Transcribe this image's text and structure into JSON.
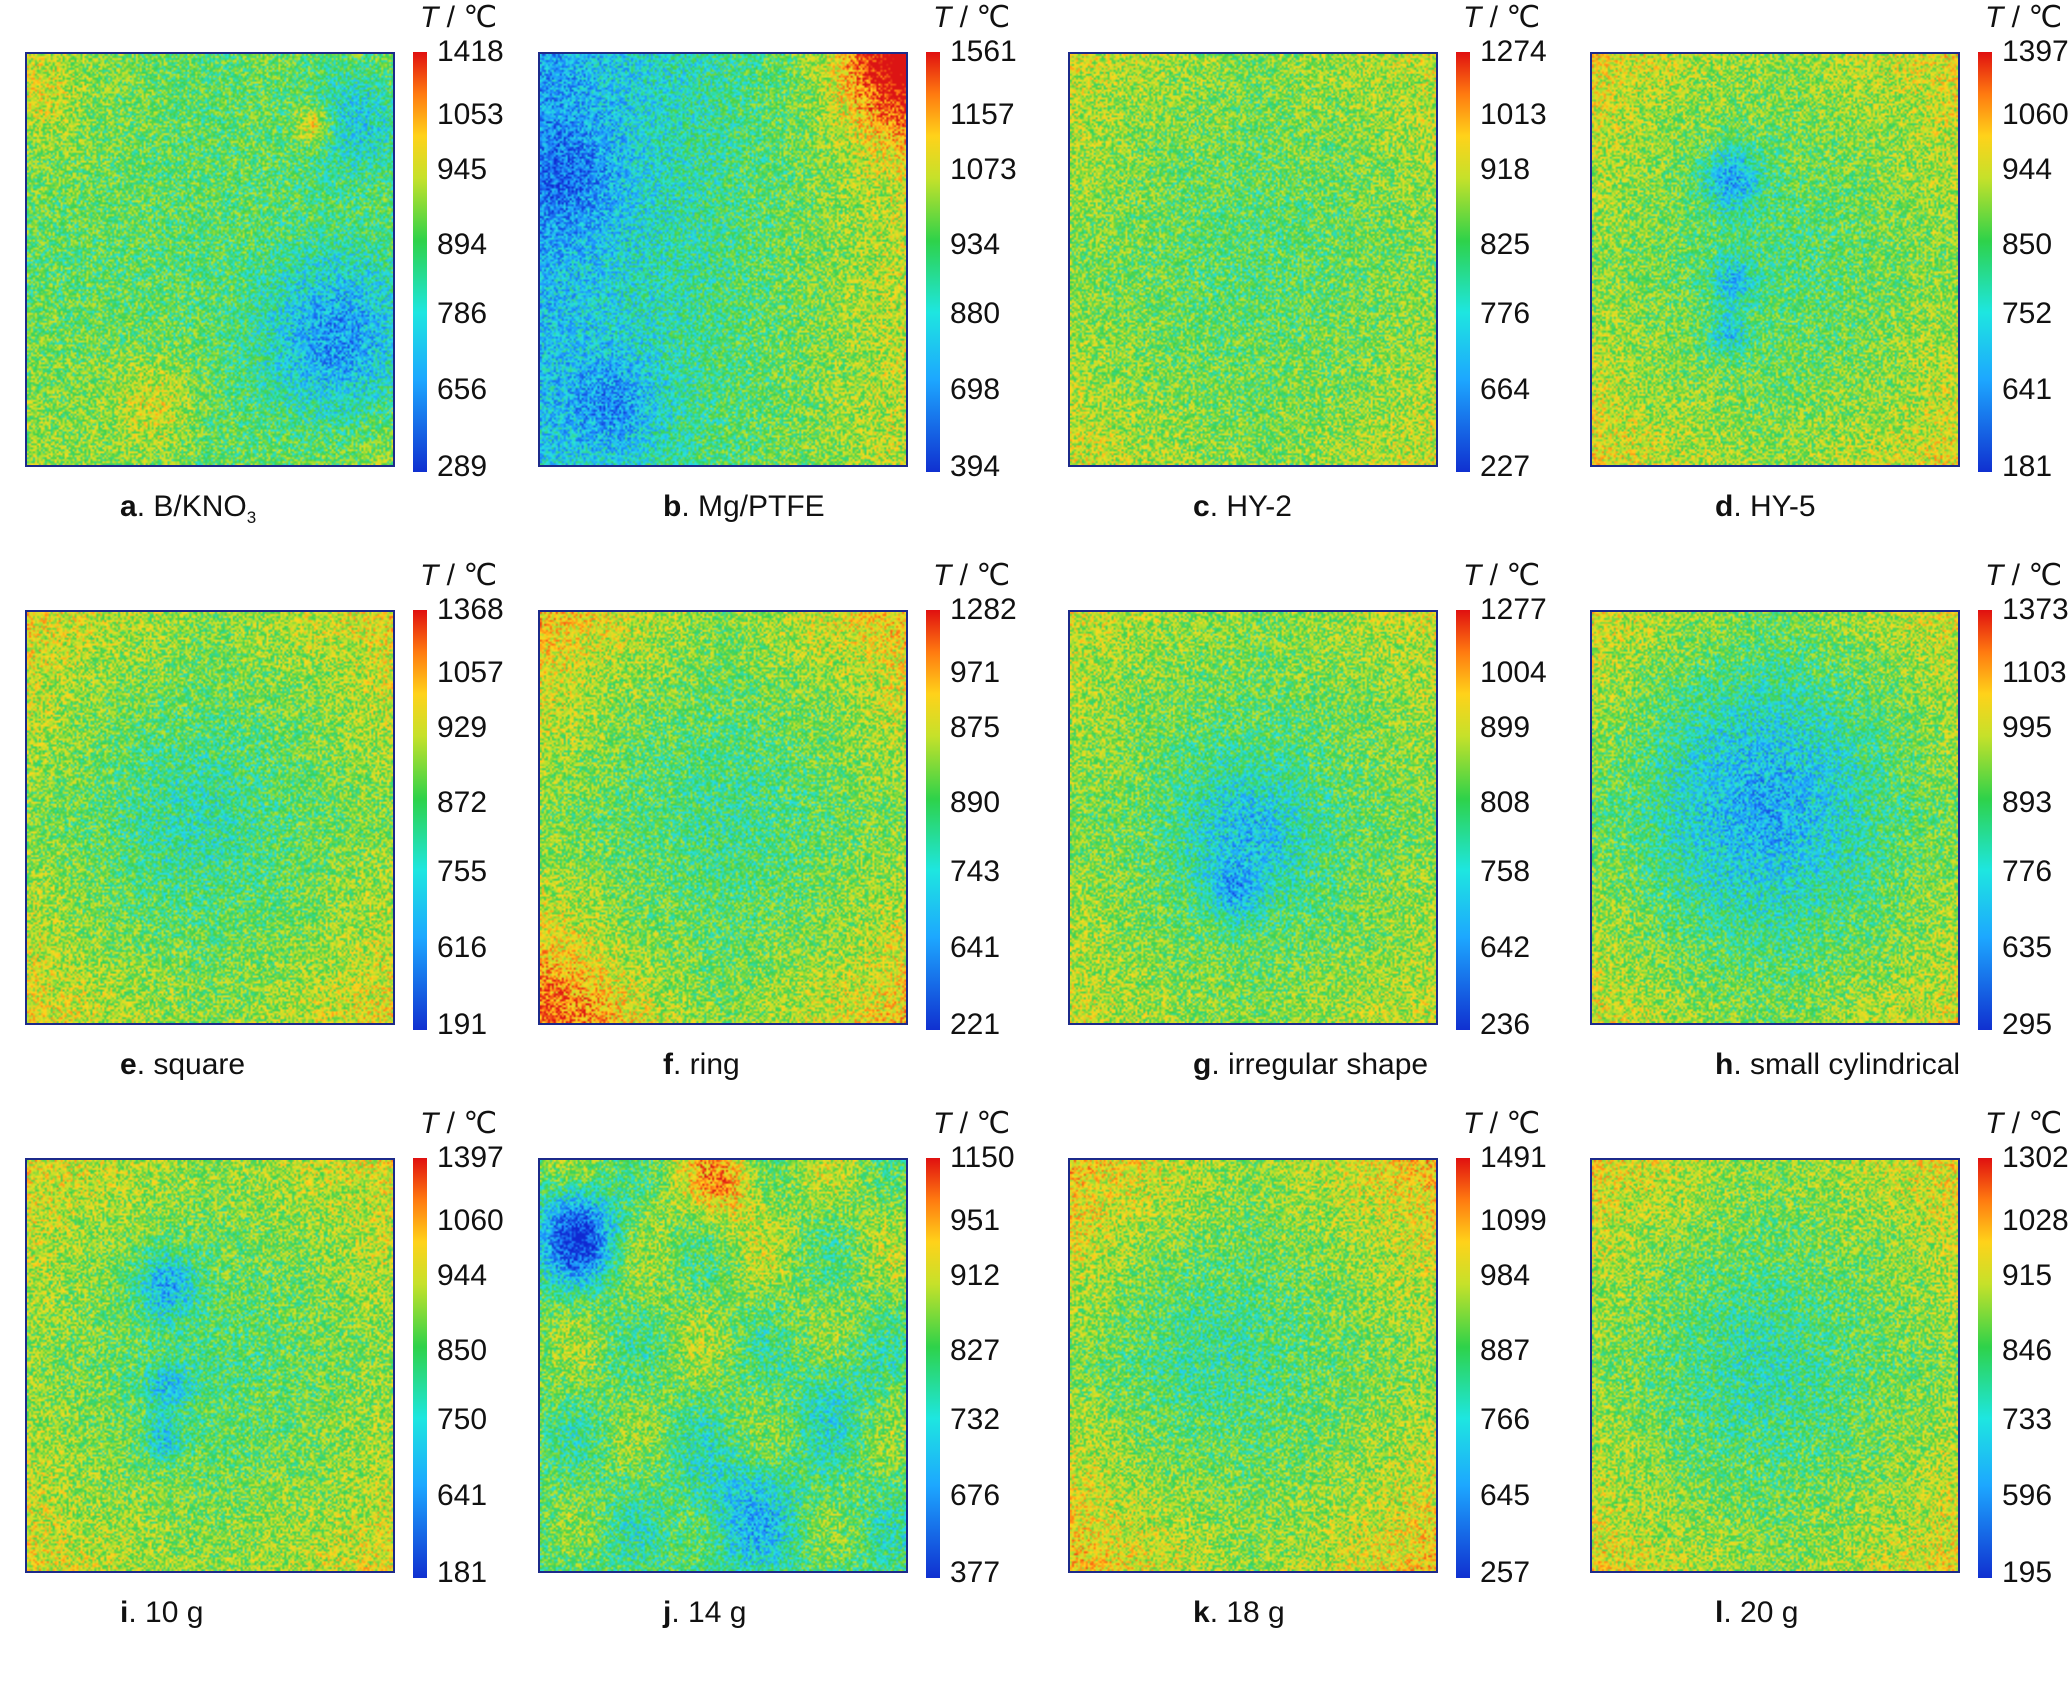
{
  "unit_symbol": "T",
  "unit_rest": " / ℃",
  "panels": [
    {
      "letter": "a",
      "label": ". B/KNO",
      "sub": "3",
      "ticks": [
        "1418",
        "1053",
        "945",
        "894",
        "786",
        "656",
        "289"
      ],
      "pattern": "a"
    },
    {
      "letter": "b",
      "label": ". Mg/PTFE",
      "sub": "",
      "ticks": [
        "1561",
        "1157",
        "1073",
        "934",
        "880",
        "698",
        "394"
      ],
      "pattern": "b"
    },
    {
      "letter": "c",
      "label": ". HY-2",
      "sub": "",
      "ticks": [
        "1274",
        "1013",
        "918",
        "825",
        "776",
        "664",
        "227"
      ],
      "pattern": "c"
    },
    {
      "letter": "d",
      "label": ". HY-5",
      "sub": "",
      "ticks": [
        "1397",
        "1060",
        "944",
        "850",
        "752",
        "641",
        "181"
      ],
      "pattern": "d"
    },
    {
      "letter": "e",
      "label": ". square",
      "sub": "",
      "ticks": [
        "1368",
        "1057",
        "929",
        "872",
        "755",
        "616",
        "191"
      ],
      "pattern": "e"
    },
    {
      "letter": "f",
      "label": ". ring",
      "sub": "",
      "ticks": [
        "1282",
        "971",
        "875",
        "890",
        "743",
        "641",
        "221"
      ],
      "pattern": "f"
    },
    {
      "letter": "g",
      "label": ". irregular shape",
      "sub": "",
      "ticks": [
        "1277",
        "1004",
        "899",
        "808",
        "758",
        "642",
        "236"
      ],
      "pattern": "g"
    },
    {
      "letter": "h",
      "label": ". small cylindrical",
      "sub": "",
      "ticks": [
        "1373",
        "1103",
        "995",
        "893",
        "776",
        "635",
        "295"
      ],
      "pattern": "h"
    },
    {
      "letter": "i",
      "label": ". 10 g",
      "sub": "",
      "ticks": [
        "1397",
        "1060",
        "944",
        "850",
        "750",
        "641",
        "181"
      ],
      "pattern": "d"
    },
    {
      "letter": "j",
      "label": ". 14 g",
      "sub": "",
      "ticks": [
        "1150",
        "951",
        "912",
        "827",
        "732",
        "676",
        "377"
      ],
      "pattern": "j"
    },
    {
      "letter": "k",
      "label": ". 18 g",
      "sub": "",
      "ticks": [
        "1491",
        "1099",
        "984",
        "887",
        "766",
        "645",
        "257"
      ],
      "pattern": "k"
    },
    {
      "letter": "l",
      "label": ". 20 g",
      "sub": "",
      "ticks": [
        "1302",
        "1028",
        "915",
        "846",
        "733",
        "596",
        "195"
      ],
      "pattern": "e"
    }
  ]
}
